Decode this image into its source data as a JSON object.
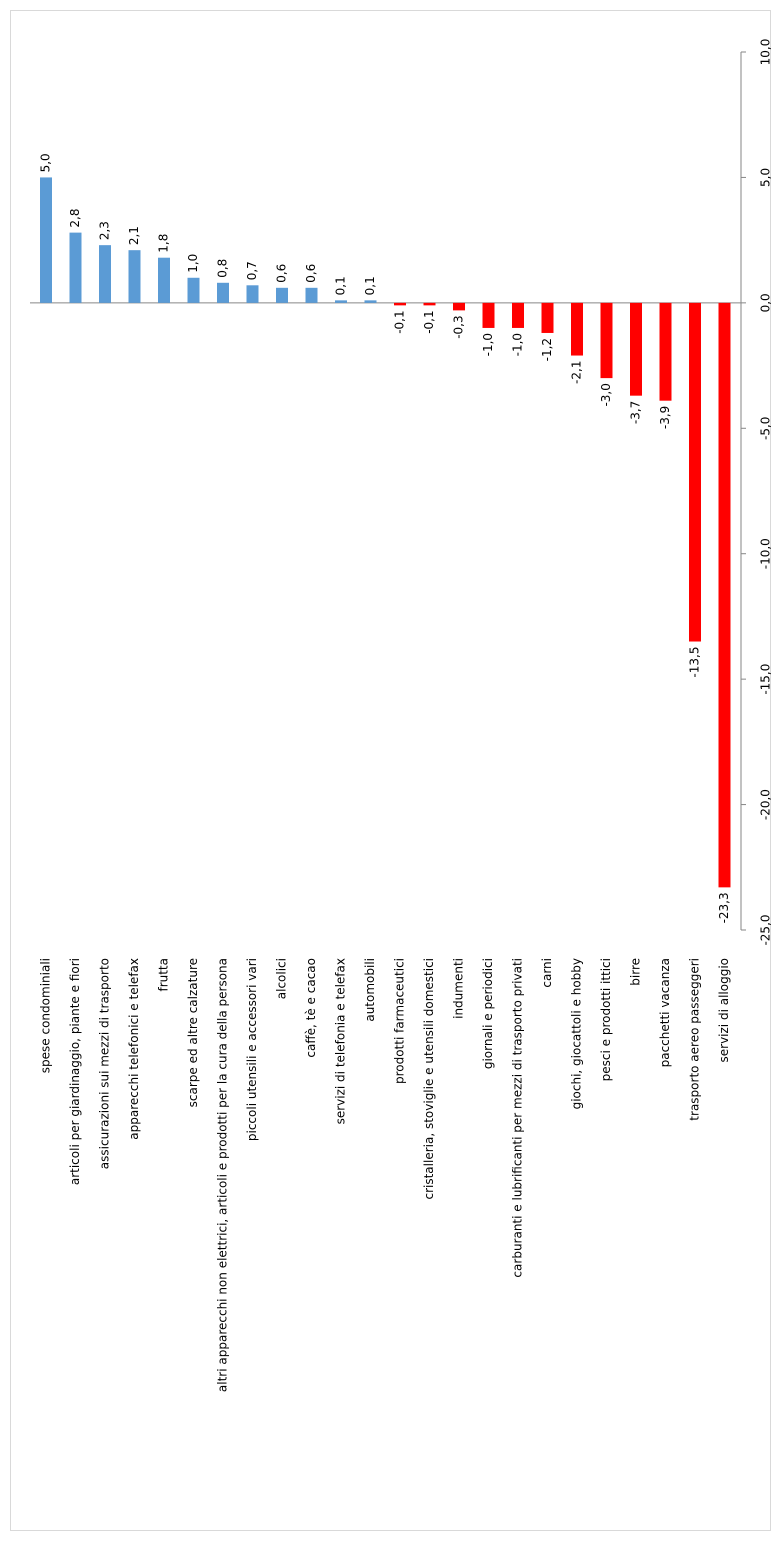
{
  "chart_data": {
    "type": "bar",
    "categories": [
      "spese condominiali",
      "articoli per giardinaggio, piante e fiori",
      "assicurazioni sui mezzi di trasporto",
      "apparecchi telefonici e telefax",
      "frutta",
      "scarpe ed altre calzature",
      "altri apparecchi non elettrici, articoli e prodotti per la cura della persona",
      "piccoli utensili e accessori vari",
      "alcolici",
      "caffè, tè e cacao",
      "servizi di telefonia e telefax",
      "automobili",
      "prodotti farmaceutici",
      "cristalleria, stoviglie e utensili domestici",
      "indumenti",
      "giornali e periodici",
      "carburanti e lubrificanti per mezzi di trasporto privati",
      "carni",
      "giochi, giocattoli e hobby",
      "pesci e prodotti ittici",
      "birre",
      "pacchetti vacanza",
      "trasporto aereo passeggeri",
      "servizi di alloggio"
    ],
    "values": [
      5.0,
      2.8,
      2.3,
      2.1,
      1.8,
      1.0,
      0.8,
      0.7,
      0.6,
      0.6,
      0.1,
      0.1,
      -0.1,
      -0.1,
      -0.3,
      -1.0,
      -1.0,
      -1.2,
      -2.1,
      -3.0,
      -3.7,
      -3.9,
      -13.5,
      -23.3
    ],
    "value_labels": [
      "5,0",
      "2,8",
      "2,3",
      "2,1",
      "1,8",
      "1,0",
      "0,8",
      "0,7",
      "0,6",
      "0,6",
      "0,1",
      "0,1",
      "-0,1",
      "-0,1",
      "-0,3",
      "-1,0",
      "-1,0",
      "-1,2",
      "-2,1",
      "-3,0",
      "-3,7",
      "-3,9",
      "-13,5",
      "-23,3"
    ],
    "color_positive": "#5b9bd5",
    "color_negative": "#ff0000",
    "ylim": [
      -25,
      10
    ],
    "yticks": [
      {
        "value": 10,
        "label": "10,0"
      },
      {
        "value": 5,
        "label": "5,0"
      },
      {
        "value": 0,
        "label": "0,0"
      },
      {
        "value": -5,
        "label": "-5,0"
      },
      {
        "value": -10,
        "label": "-10,0"
      },
      {
        "value": -15,
        "label": "-15,0"
      },
      {
        "value": -20,
        "label": "-20,0"
      },
      {
        "value": -25,
        "label": "-25,0"
      }
    ],
    "grid": false
  }
}
